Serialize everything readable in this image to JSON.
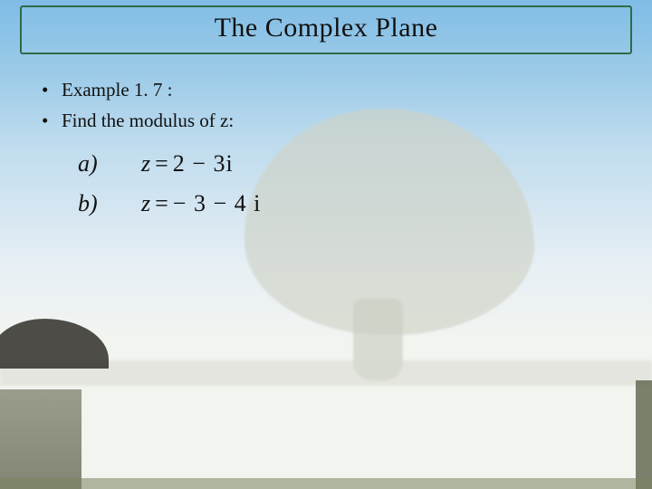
{
  "title": "The Complex Plane",
  "bullets": [
    "Example 1. 7 :",
    "Find the modulus of z:"
  ],
  "equations": [
    {
      "label": "a)",
      "lhs": "z",
      "rhs_display": "2 − 3i"
    },
    {
      "label": "b)",
      "lhs": "z",
      "rhs_display": "− 3 − 4 i"
    }
  ],
  "colors": {
    "title_border": "#2e6b46",
    "sky_top": "#7fbce6",
    "sky_mid": "#c0dcee",
    "ground": "#f2f4f0",
    "text": "#111111"
  },
  "fonts": {
    "title_family": "Papyrus",
    "title_size_pt": 24,
    "body_family": "Times New Roman",
    "body_size_pt": 16,
    "equation_size_pt": 20
  }
}
